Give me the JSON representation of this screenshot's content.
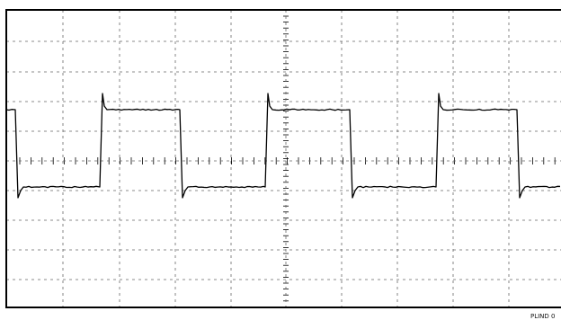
{
  "screen": {
    "caption": "PLIND 0",
    "background": "#ffffff",
    "trace_color": "#000000",
    "grid_color": "#666666"
  }
}
